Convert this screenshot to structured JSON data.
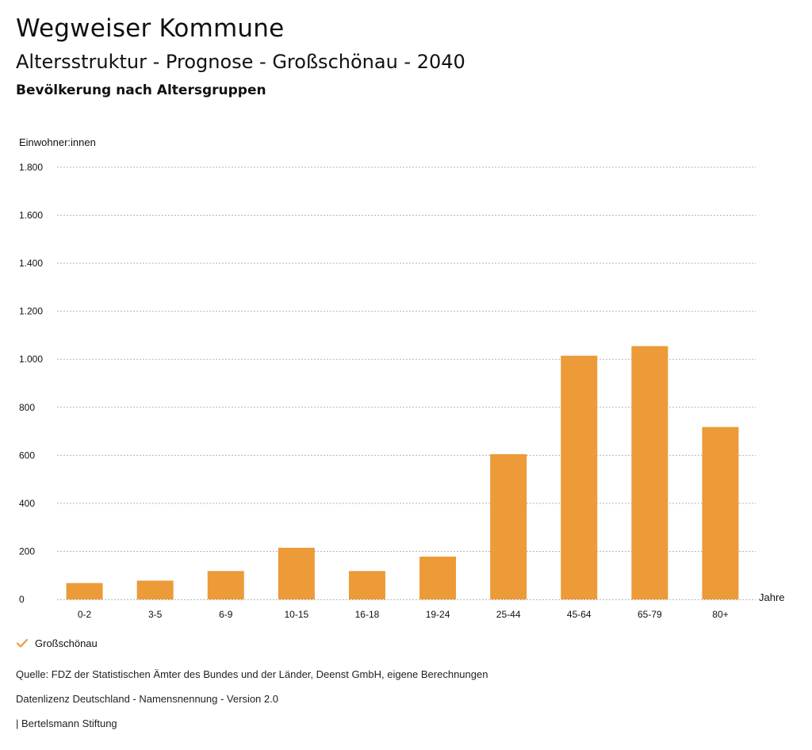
{
  "header": {
    "title": "Wegweiser Kommune",
    "subtitle": "Altersstruktur - Prognose - Großschönau - 2040",
    "chart_heading": "Bevölkerung nach Altersgruppen"
  },
  "colors": {
    "bar": "#ED9A38",
    "grid": "#b5b5b5",
    "text": "#111111"
  },
  "chart_data": {
    "type": "bar",
    "title": "Bevölkerung nach Altersgruppen",
    "ylabel": "Einwohner:innen",
    "xlabel": "Jahre",
    "ylim": [
      0,
      1800
    ],
    "yticks": [
      0,
      200,
      400,
      600,
      800,
      1000,
      1200,
      1400,
      1600,
      1800
    ],
    "ytick_labels": [
      "0",
      "200",
      "400",
      "600",
      "800",
      "1.000",
      "1.200",
      "1.400",
      "1.600",
      "1.800"
    ],
    "categories": [
      "0-2",
      "3-5",
      "6-9",
      "10-15",
      "16-18",
      "19-24",
      "25-44",
      "45-64",
      "65-79",
      "80+"
    ],
    "series": [
      {
        "name": "Großschönau",
        "values": [
          68,
          78,
          118,
          215,
          118,
          178,
          605,
          1015,
          1055,
          718
        ]
      }
    ],
    "grid": true,
    "legend_position": "bottom-left"
  },
  "legend": {
    "label": "Großschönau",
    "icon": "check-icon"
  },
  "footer": {
    "source": "Quelle: FDZ der Statistischen Ämter des Bundes und der Länder, Deenst GmbH, eigene Berechnungen",
    "license": "Datenlizenz Deutschland - Namensnennung - Version 2.0",
    "credit": "| Bertelsmann Stiftung"
  }
}
